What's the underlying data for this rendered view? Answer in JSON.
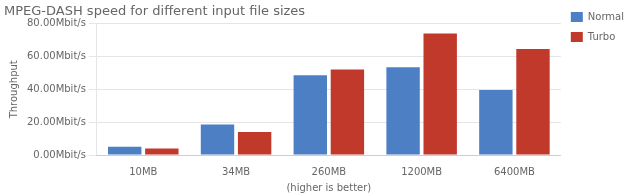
{
  "chart_data": {
    "type": "bar",
    "title": "MPEG-DASH speed for different input file sizes",
    "xlabel": "(higher is better)",
    "ylabel": "Throughput",
    "categories": [
      "10MB",
      "34MB",
      "260MB",
      "1200MB",
      "6400MB"
    ],
    "series": [
      {
        "name": "Normal",
        "color": "#4d7fc4",
        "values": [
          5.0,
          18.5,
          48.5,
          53.5,
          39.5
        ]
      },
      {
        "name": "Turbo",
        "color": "#c0392b",
        "values": [
          4.0,
          14.0,
          52.0,
          74.0,
          64.5
        ]
      }
    ],
    "ylim": [
      0,
      80
    ],
    "yticks": [
      {
        "value": 0,
        "label": "0.00Mbit/s"
      },
      {
        "value": 20,
        "label": "20.00Mbit/s"
      },
      {
        "value": 40,
        "label": "40.00Mbit/s"
      },
      {
        "value": 60,
        "label": "60.00Mbit/s"
      },
      {
        "value": 80,
        "label": "80.00Mbit/s"
      }
    ],
    "grid": true,
    "legend": "right"
  }
}
